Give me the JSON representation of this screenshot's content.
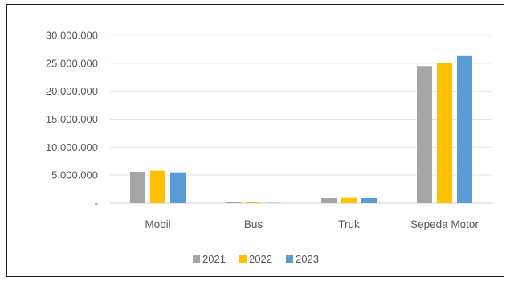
{
  "chart_data": {
    "type": "bar",
    "categories": [
      "Mobil",
      "Bus",
      "Truk",
      "Sepeda Motor"
    ],
    "series": [
      {
        "name": "2021",
        "color": "#a5a5a5",
        "values": [
          5600000,
          240000,
          1000000,
          24500000
        ]
      },
      {
        "name": "2022",
        "color": "#ffc000",
        "values": [
          5800000,
          240000,
          1050000,
          25000000
        ]
      },
      {
        "name": "2023",
        "color": "#5b9bd5",
        "values": [
          5500000,
          50000,
          1000000,
          26300000
        ]
      }
    ],
    "yticks": [
      0,
      5000000,
      10000000,
      15000000,
      20000000,
      25000000,
      30000000
    ],
    "ytick_labels": [
      "-",
      "5.000.000",
      "10.000.000",
      "15.000.000",
      "20.000.000",
      "25.000.000",
      "30.000.000"
    ],
    "ylim": [
      0,
      30000000
    ],
    "grid": true,
    "legend_position": "bottom"
  }
}
